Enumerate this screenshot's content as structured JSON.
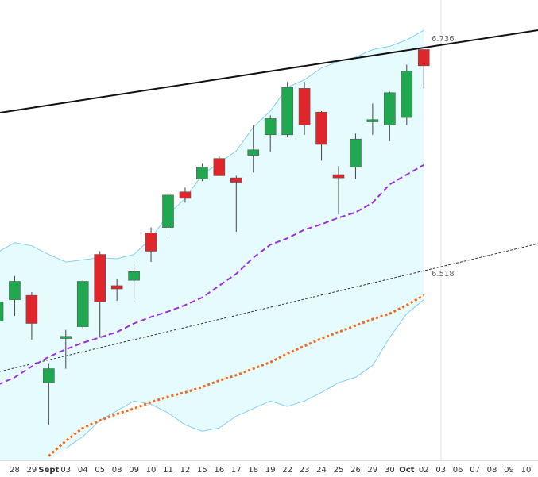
{
  "chart_data": {
    "type": "candlestick",
    "categories": [
      null,
      "28",
      "29",
      "Sept",
      "03",
      "04",
      "05",
      "08",
      "09",
      "10",
      "11",
      "12",
      "15",
      "16",
      "17",
      "18",
      "19",
      "22",
      "23",
      "24",
      "25",
      "26",
      "29",
      "30",
      "Oct",
      "02",
      "03",
      "06",
      "07",
      "08",
      "09",
      "10"
    ],
    "open": [
      6.474,
      6.494,
      6.498,
      6.417,
      6.458,
      6.469,
      6.536,
      6.507,
      6.512,
      6.556,
      6.561,
      6.594,
      6.606,
      6.625,
      6.607,
      6.628,
      6.647,
      6.647,
      6.69,
      6.668,
      6.61,
      6.617,
      6.659,
      6.656,
      6.663,
      6.726,
      null,
      null,
      null,
      null,
      null,
      null
    ],
    "high": [
      null,
      6.516,
      6.501,
      6.435,
      6.466,
      6.512,
      6.539,
      6.513,
      6.527,
      6.561,
      6.595,
      6.598,
      6.62,
      6.627,
      6.609,
      6.656,
      6.665,
      6.696,
      6.696,
      6.669,
      6.618,
      6.648,
      6.676,
      6.687,
      6.712,
      6.726,
      null,
      null,
      null,
      null,
      null,
      null
    ],
    "low": [
      null,
      6.479,
      6.457,
      6.378,
      6.43,
      6.467,
      6.459,
      6.493,
      6.492,
      6.529,
      6.553,
      6.584,
      6.604,
      6.609,
      6.557,
      6.612,
      6.631,
      6.645,
      6.647,
      6.623,
      6.573,
      6.606,
      6.647,
      6.641,
      6.656,
      6.69,
      null,
      null,
      null,
      null,
      null,
      null
    ],
    "close": [
      6.492,
      6.511,
      6.472,
      6.43,
      6.46,
      6.511,
      6.492,
      6.504,
      6.52,
      6.539,
      6.591,
      6.588,
      6.617,
      6.609,
      6.603,
      6.633,
      6.662,
      6.691,
      6.656,
      6.638,
      6.607,
      6.643,
      6.661,
      6.686,
      6.706,
      6.711,
      null,
      null,
      null,
      null,
      null,
      null
    ],
    "up_color": "#1fa84f",
    "down_color": "#e0262b",
    "series": [
      {
        "color": "#87cef0",
        "values": [
          6.538,
          6.547,
          6.544,
          6.536,
          6.529,
          6.531,
          6.533,
          6.532,
          6.536,
          6.551,
          6.573,
          6.588,
          6.61,
          6.621,
          6.632,
          6.654,
          6.669,
          6.691,
          6.698,
          6.709,
          6.715,
          6.719,
          6.726,
          6.729,
          6.735,
          6.744,
          null,
          null,
          null,
          null,
          null,
          null
        ]
      },
      {
        "color": "#87cef0",
        "values": [
          null,
          null,
          null,
          null,
          6.356,
          6.367,
          6.382,
          6.391,
          6.4,
          6.397,
          6.389,
          6.378,
          6.372,
          6.375,
          6.386,
          6.393,
          6.4,
          6.395,
          6.4,
          6.408,
          6.417,
          6.422,
          6.433,
          6.459,
          6.481,
          6.494,
          null,
          null,
          null,
          null,
          null,
          null
        ]
      },
      {
        "color": "#9b30e0",
        "values": [
          6.415,
          6.422,
          6.432,
          6.441,
          6.448,
          6.454,
          6.459,
          6.464,
          6.472,
          6.478,
          6.483,
          6.489,
          6.496,
          6.507,
          6.518,
          6.533,
          6.545,
          6.551,
          6.559,
          6.564,
          6.57,
          6.575,
          6.584,
          6.601,
          6.61,
          6.619,
          null,
          null,
          null,
          null,
          null,
          null
        ]
      },
      {
        "color": "#f26a1b",
        "values": [
          null,
          null,
          null,
          6.349,
          6.363,
          6.375,
          6.382,
          6.388,
          6.393,
          6.399,
          6.404,
          6.408,
          6.413,
          6.419,
          6.424,
          6.43,
          6.436,
          6.444,
          6.451,
          6.458,
          6.464,
          6.47,
          6.476,
          6.481,
          6.489,
          6.498,
          null,
          null,
          null,
          null,
          null,
          null
        ]
      }
    ],
    "band_fill": "#e6fbfd",
    "ylim": [
      6.345,
      6.772
    ],
    "annotations": [
      {
        "label": "6.736",
        "value": 6.736
      },
      {
        "label": "6.518",
        "value": 6.518
      }
    ]
  }
}
